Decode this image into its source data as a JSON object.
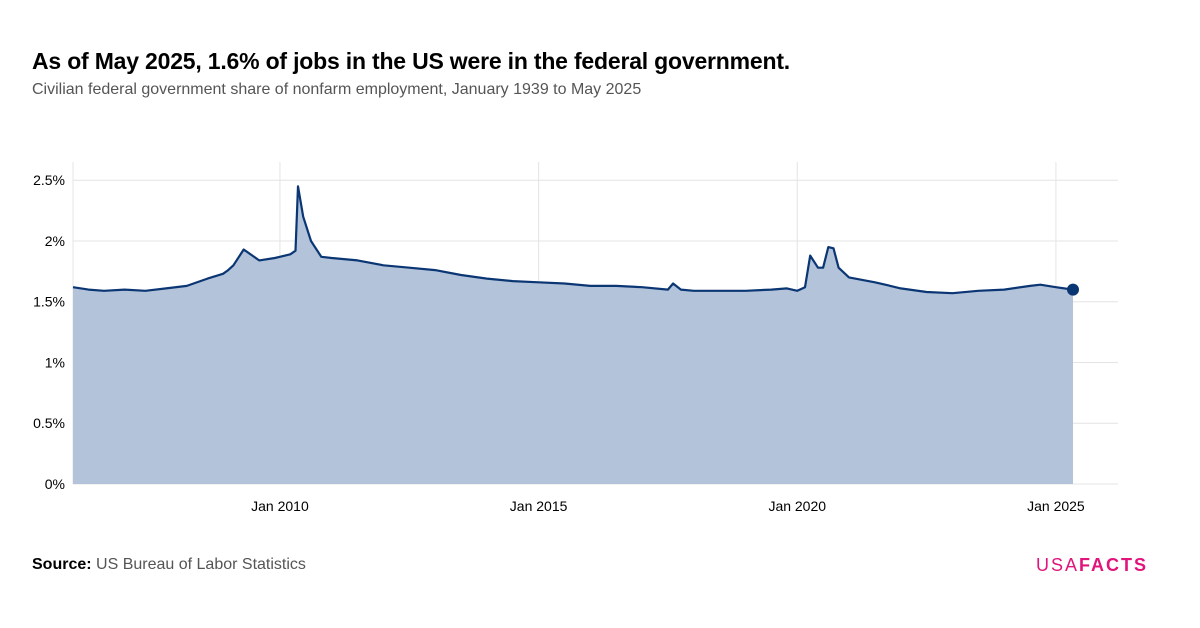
{
  "header": {
    "title": "As of May 2025, 1.6% of jobs in the US were in the federal government.",
    "subtitle": "Civilian federal government share of nonfarm employment, January 1939 to May 2025"
  },
  "footer": {
    "source_label": "Source:",
    "source_text": "US Bureau of Labor Statistics",
    "logo_left": "USA",
    "logo_right": "FACTS"
  },
  "colors": {
    "line": "#0b3674",
    "area": "#b3c3da",
    "grid": "#e4e4e4",
    "logo": "#e0147b"
  },
  "chart_data": {
    "type": "area",
    "title": "As of May 2025, 1.6% of jobs in the US were in the federal government.",
    "subtitle": "Civilian federal government share of nonfarm employment, January 1939 to May 2025",
    "xlabel": "",
    "ylabel": "",
    "x_unit": "year",
    "xlim": [
      2006.0,
      2026.2
    ],
    "ylim": [
      0,
      2.65
    ],
    "y_ticks": [
      0,
      0.5,
      1,
      1.5,
      2,
      2.5
    ],
    "y_tick_labels": [
      "0%",
      "0.5%",
      "1%",
      "1.5%",
      "2%",
      "2.5%"
    ],
    "x_ticks": [
      2010,
      2015,
      2020,
      2025
    ],
    "x_tick_labels": [
      "Jan 2010",
      "Jan 2015",
      "Jan 2020",
      "Jan 2025"
    ],
    "grid": true,
    "series": [
      {
        "x": [
          2006.0,
          2006.3,
          2006.6,
          2007.0,
          2007.4,
          2007.8,
          2008.2,
          2008.6,
          2008.9,
          2009.0,
          2009.1,
          2009.3,
          2009.6,
          2009.9,
          2010.0,
          2010.2,
          2010.3,
          2010.35,
          2010.45,
          2010.6,
          2010.8,
          2011.0,
          2011.5,
          2012.0,
          2012.5,
          2013.0,
          2013.5,
          2014.0,
          2014.5,
          2015.0,
          2015.5,
          2016.0,
          2016.5,
          2017.0,
          2017.5,
          2017.6,
          2017.75,
          2018.0,
          2018.5,
          2019.0,
          2019.5,
          2019.8,
          2020.0,
          2020.15,
          2020.25,
          2020.4,
          2020.5,
          2020.6,
          2020.7,
          2020.8,
          2021.0,
          2021.5,
          2021.8,
          2022.0,
          2022.5,
          2023.0,
          2023.5,
          2024.0,
          2024.5,
          2024.7,
          2025.0,
          2025.33
        ],
        "y": [
          1.62,
          1.6,
          1.59,
          1.6,
          1.59,
          1.61,
          1.63,
          1.69,
          1.73,
          1.76,
          1.8,
          1.93,
          1.84,
          1.86,
          1.87,
          1.89,
          1.92,
          2.45,
          2.2,
          2.0,
          1.87,
          1.86,
          1.84,
          1.8,
          1.78,
          1.76,
          1.72,
          1.69,
          1.67,
          1.66,
          1.65,
          1.63,
          1.63,
          1.62,
          1.6,
          1.65,
          1.6,
          1.59,
          1.59,
          1.59,
          1.6,
          1.61,
          1.59,
          1.62,
          1.88,
          1.78,
          1.78,
          1.95,
          1.94,
          1.78,
          1.7,
          1.66,
          1.63,
          1.61,
          1.58,
          1.57,
          1.59,
          1.6,
          1.63,
          1.64,
          1.62,
          1.6
        ]
      }
    ],
    "last_point": {
      "x": 2025.33,
      "y": 1.6
    }
  }
}
